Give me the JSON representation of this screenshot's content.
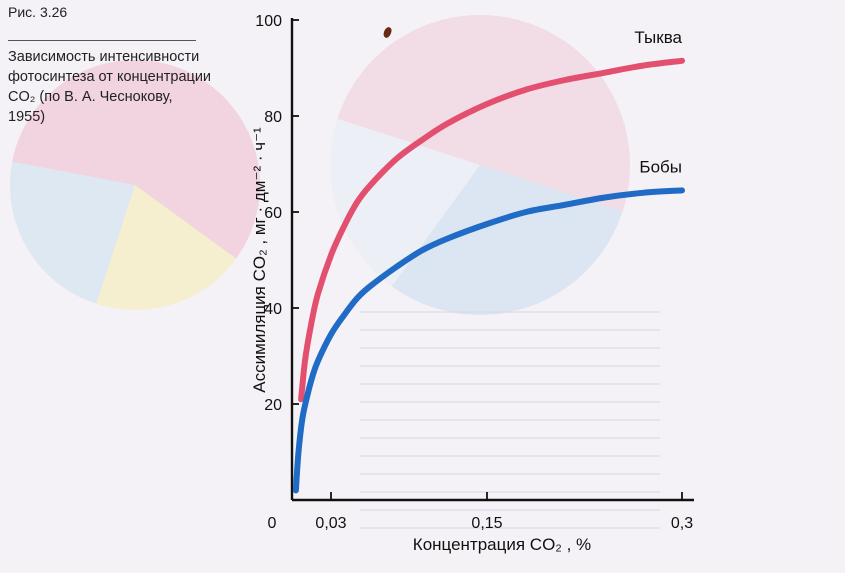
{
  "caption": {
    "figure_number": "Рис. 3.26",
    "text": "Зависимость интенсивности фотосинтеза от концентрации CO₂ (по В. А. Чеснокову, 1955)"
  },
  "chart_data": {
    "type": "line",
    "title": "",
    "xlabel": "Концентрация CO₂ , %",
    "ylabel": "Ассимиляция CO₂ , мг · дм⁻² · ч⁻¹",
    "xlim": [
      0,
      0.3
    ],
    "ylim": [
      0,
      100
    ],
    "x_ticks": [
      {
        "value": 0,
        "label": "0"
      },
      {
        "value": 0.03,
        "label": "0,03"
      },
      {
        "value": 0.15,
        "label": "0,15"
      },
      {
        "value": 0.3,
        "label": "0,3"
      }
    ],
    "y_ticks": [
      {
        "value": 20,
        "label": "20"
      },
      {
        "value": 40,
        "label": "40"
      },
      {
        "value": 60,
        "label": "60"
      },
      {
        "value": 80,
        "label": "80"
      },
      {
        "value": 100,
        "label": "100"
      }
    ],
    "grid": false,
    "series": [
      {
        "name": "Тыква",
        "color": "#e3506f",
        "x": [
          0.007,
          0.01,
          0.015,
          0.02,
          0.03,
          0.04,
          0.05,
          0.06,
          0.08,
          0.1,
          0.12,
          0.15,
          0.18,
          0.21,
          0.24,
          0.27,
          0.3
        ],
        "y": [
          21,
          29,
          37,
          43,
          51,
          57,
          62,
          65.5,
          71,
          75,
          78.5,
          82.5,
          85.5,
          87.5,
          89,
          90.5,
          91.5
        ]
      },
      {
        "name": "Бобы",
        "color": "#1f6bc6",
        "x": [
          0.003,
          0.005,
          0.008,
          0.012,
          0.016,
          0.02,
          0.03,
          0.04,
          0.05,
          0.06,
          0.08,
          0.1,
          0.12,
          0.15,
          0.18,
          0.21,
          0.24,
          0.27,
          0.3
        ],
        "y": [
          2,
          10,
          17,
          22,
          26,
          29,
          34.5,
          38.5,
          42,
          44.5,
          48.5,
          52,
          54.5,
          57.5,
          60,
          61.5,
          63,
          64,
          64.5
        ]
      }
    ]
  }
}
